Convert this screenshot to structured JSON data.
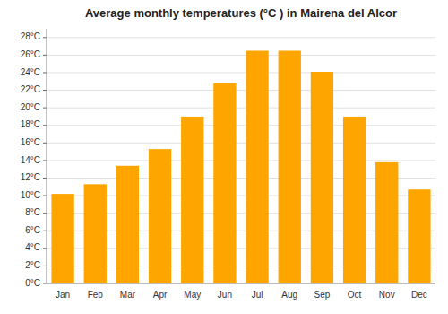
{
  "chart_data": {
    "type": "bar",
    "title": "Average monthly temperatures (°C ) in Mairena del Alcor",
    "categories": [
      "Jan",
      "Feb",
      "Mar",
      "Apr",
      "May",
      "Jun",
      "Jul",
      "Aug",
      "Sep",
      "Oct",
      "Nov",
      "Dec"
    ],
    "values": [
      10.2,
      11.3,
      13.4,
      15.3,
      19.0,
      22.8,
      26.5,
      26.5,
      24.1,
      19.0,
      13.8,
      10.7
    ],
    "color": "#FFA500",
    "ylim": [
      0,
      29
    ],
    "yticks": [
      {
        "value": 0,
        "label": "0°C"
      },
      {
        "value": 2,
        "label": "2°C"
      },
      {
        "value": 4,
        "label": "4°C"
      },
      {
        "value": 6,
        "label": "6°C"
      },
      {
        "value": 8,
        "label": "8°C"
      },
      {
        "value": 10,
        "label": "10°C"
      },
      {
        "value": 12,
        "label": "12°C"
      },
      {
        "value": 14,
        "label": "14°C"
      },
      {
        "value": 16,
        "label": "16°C"
      },
      {
        "value": 18,
        "label": "18°C"
      },
      {
        "value": 20,
        "label": "20°C"
      },
      {
        "value": 22,
        "label": "22°C"
      },
      {
        "value": 24,
        "label": "24°C"
      },
      {
        "value": 26,
        "label": "26°C"
      },
      {
        "value": 28,
        "label": "28°C"
      }
    ],
    "grid": true
  }
}
